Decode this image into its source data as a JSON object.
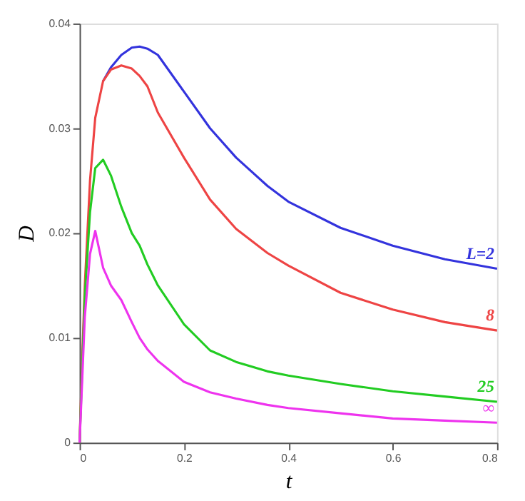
{
  "chart_data": {
    "type": "line",
    "xlabel": "t",
    "ylabel": "D",
    "xlim": [
      0,
      0.8
    ],
    "ylim": [
      0,
      0.04
    ],
    "xticks": [
      0,
      0.2,
      0.4,
      0.6,
      0.8
    ],
    "yticks": [
      0,
      0.01,
      0.02,
      0.03,
      0.04
    ],
    "grid": false,
    "legend": false,
    "marker": "none",
    "line_style": "solid",
    "x": [
      0,
      0.005,
      0.01,
      0.02,
      0.03,
      0.045,
      0.06,
      0.08,
      0.1,
      0.115,
      0.13,
      0.15,
      0.2,
      0.25,
      0.3,
      0.36,
      0.4,
      0.5,
      0.6,
      0.7,
      0.8
    ],
    "series": [
      {
        "color": "#3333dd",
        "values": [
          null,
          null,
          null,
          null,
          null,
          0.0345,
          0.0358,
          0.037,
          0.0377,
          0.0378,
          0.0376,
          0.037,
          0.0335,
          0.03,
          0.0272,
          0.0245,
          0.023,
          0.0205,
          0.0188,
          0.0175,
          0.0166
        ]
      },
      {
        "color": "#ee4444",
        "values": [
          0,
          0.008,
          0.015,
          0.025,
          0.031,
          0.0345,
          0.0356,
          0.036,
          0.0357,
          0.035,
          0.034,
          0.0315,
          0.0272,
          0.0232,
          0.0204,
          0.0181,
          0.0169,
          0.0143,
          0.0127,
          0.0115,
          0.0107
        ]
      },
      {
        "color": "#22cc22",
        "values": [
          0,
          0.007,
          0.014,
          0.022,
          0.0262,
          0.027,
          0.0255,
          0.0225,
          0.02,
          0.0188,
          0.017,
          0.015,
          0.0113,
          0.0088,
          0.0077,
          0.0068,
          0.0064,
          0.0056,
          0.0049,
          0.0044,
          0.0039
        ]
      },
      {
        "color": "#ee33ee",
        "values": [
          0,
          0.006,
          0.012,
          0.018,
          0.0202,
          0.0167,
          0.015,
          0.0136,
          0.0115,
          0.01,
          0.0089,
          0.0078,
          0.0058,
          0.0048,
          0.0042,
          0.0036,
          0.0033,
          0.0028,
          0.0023,
          0.0021,
          0.0019
        ]
      }
    ],
    "annotations": [
      "L=2",
      "8",
      "25",
      "∞"
    ]
  }
}
